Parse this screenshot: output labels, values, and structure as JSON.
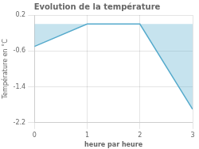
{
  "chart_data": {
    "type": "area",
    "title": "Evolution de la température",
    "ylabel": "Température en °C",
    "xlabel": "heure par heure",
    "x": [
      0,
      1,
      2,
      3
    ],
    "values": [
      -0.5,
      0.0,
      0.0,
      -1.9
    ],
    "color": "#55aacc",
    "xlim": [
      0,
      3
    ],
    "ylim": [
      -2.2,
      0.2
    ],
    "xticks": [
      0,
      1,
      2,
      3
    ],
    "yticks": [
      0.2,
      -0.6,
      -1.4,
      -2.2
    ],
    "grid": true
  }
}
